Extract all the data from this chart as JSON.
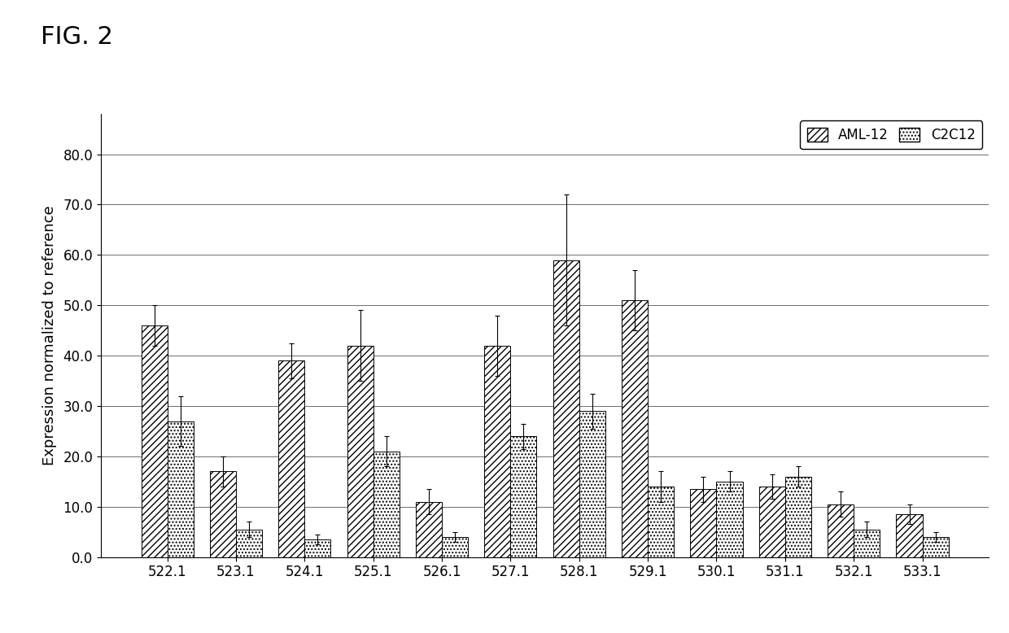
{
  "categories": [
    "522.1",
    "523.1",
    "524.1",
    "525.1",
    "526.1",
    "527.1",
    "528.1",
    "529.1",
    "530.1",
    "531.1",
    "532.1",
    "533.1"
  ],
  "aml12_values": [
    46.0,
    17.0,
    39.0,
    42.0,
    11.0,
    42.0,
    59.0,
    51.0,
    13.5,
    14.0,
    10.5,
    8.5
  ],
  "aml12_errors": [
    4.0,
    3.0,
    3.5,
    7.0,
    2.5,
    6.0,
    13.0,
    6.0,
    2.5,
    2.5,
    2.5,
    2.0
  ],
  "c2c12_values": [
    27.0,
    5.5,
    3.5,
    21.0,
    4.0,
    24.0,
    29.0,
    14.0,
    15.0,
    16.0,
    5.5,
    4.0
  ],
  "c2c12_errors": [
    5.0,
    1.5,
    1.0,
    3.0,
    1.0,
    2.5,
    3.5,
    3.0,
    2.0,
    2.0,
    1.5,
    1.0
  ],
  "ylabel": "Expression normalized to reference",
  "ylim": [
    0.0,
    88.0
  ],
  "yticks": [
    0.0,
    10.0,
    20.0,
    30.0,
    40.0,
    50.0,
    60.0,
    70.0,
    80.0
  ],
  "figure_title": "FIG. 2",
  "bar_width": 0.38,
  "background_color": "#ffffff",
  "legend_labels": [
    "AML-12",
    "C2C12"
  ],
  "grid_color": "#555555",
  "hatch_aml12": "////",
  "hatch_c2c12": "....",
  "title_fontsize": 22,
  "axis_fontsize": 13,
  "tick_fontsize": 12,
  "legend_fontsize": 12
}
